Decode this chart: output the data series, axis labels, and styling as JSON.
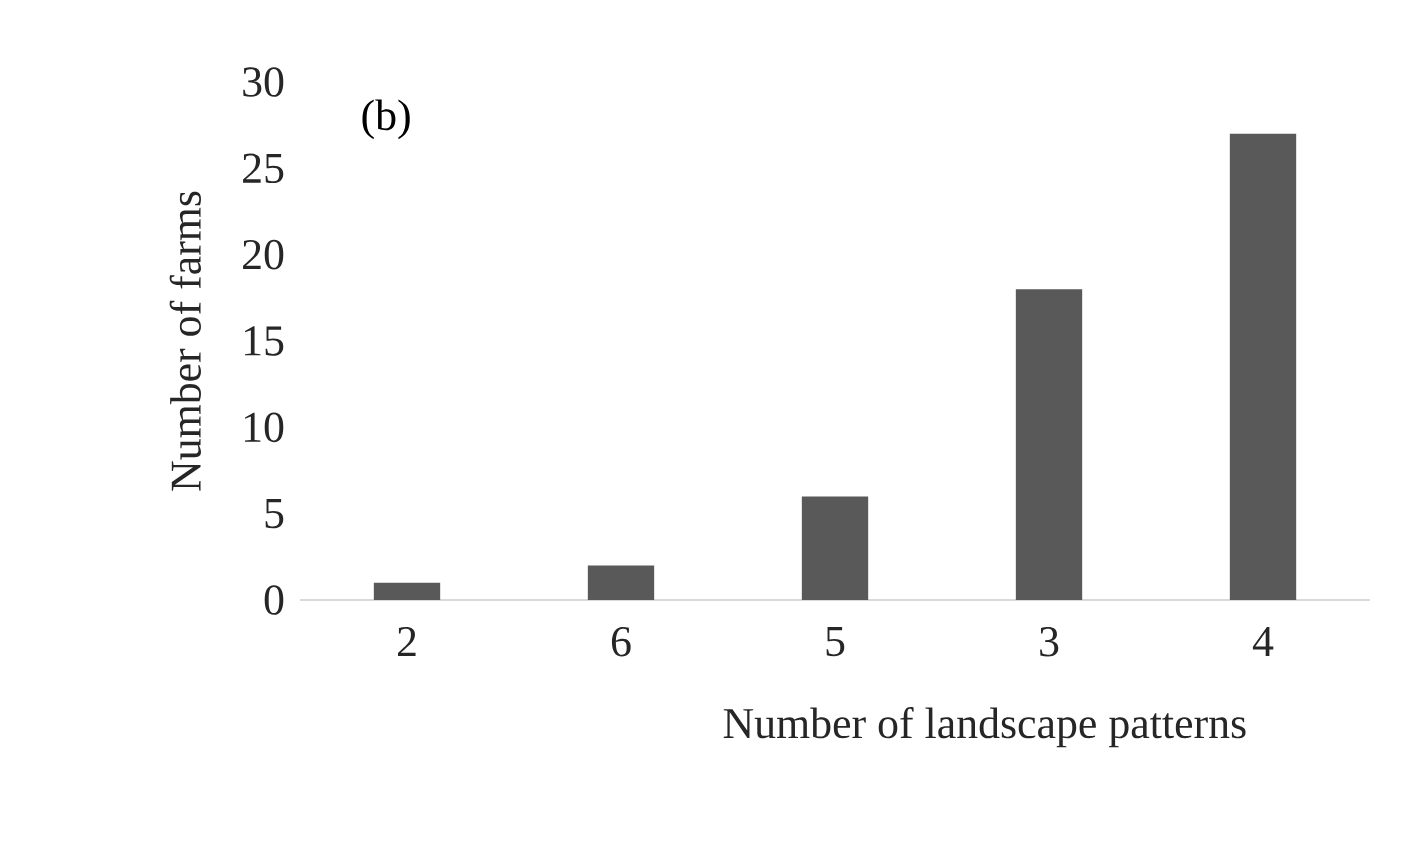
{
  "chart_data": {
    "type": "bar",
    "xlabel": "Number of landscape patterns",
    "ylabel": "Number of farms",
    "categories": [
      "2",
      "6",
      "5",
      "3",
      "4"
    ],
    "values": [
      1,
      2,
      6,
      18,
      27
    ],
    "color": "#595959",
    "ylim": [
      0,
      30
    ],
    "yticks": [
      0,
      5,
      10,
      15,
      20,
      25,
      30
    ],
    "grid": false,
    "annotations": [
      "(b)"
    ]
  }
}
